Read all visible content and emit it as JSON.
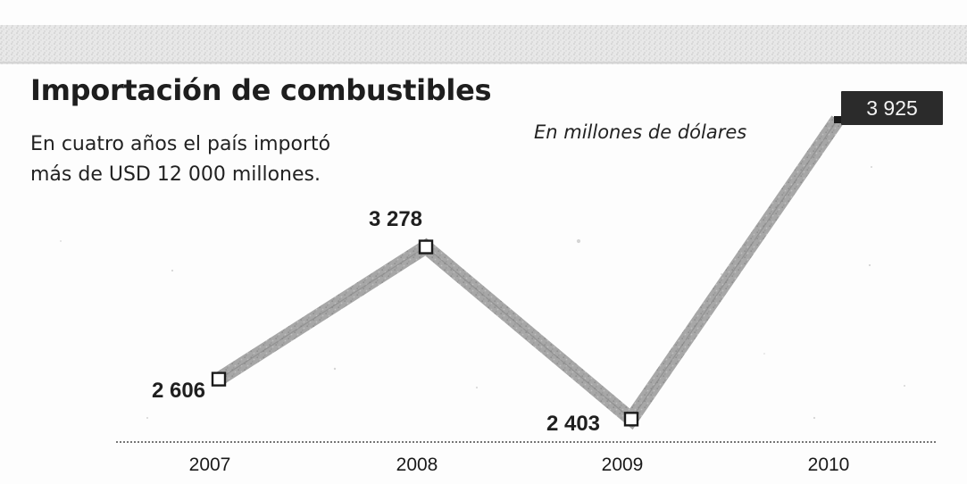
{
  "chart_data": {
    "type": "line",
    "title": "Importación de combustibles",
    "subtitle": "En cuatro años el país importó más de USD 12 000 millones.",
    "unit_label": "En millones de dólares",
    "x": [
      "2007",
      "2008",
      "2009",
      "2010"
    ],
    "values": [
      2606,
      3278,
      2403,
      3925
    ],
    "data_labels": [
      "2 606",
      "3 278",
      "2 403",
      "3 925"
    ],
    "highlighted_label_index": 3,
    "ylim": [
      2400,
      3925
    ],
    "grid": false,
    "colors": {
      "line": "#9c9c9c",
      "marker_fill": "#ffffff",
      "marker_stroke": "#1a1a1a",
      "highlight_bg": "#2b2b2b",
      "highlight_text": "#f3f3f3",
      "text": "#1f1f1f"
    }
  }
}
